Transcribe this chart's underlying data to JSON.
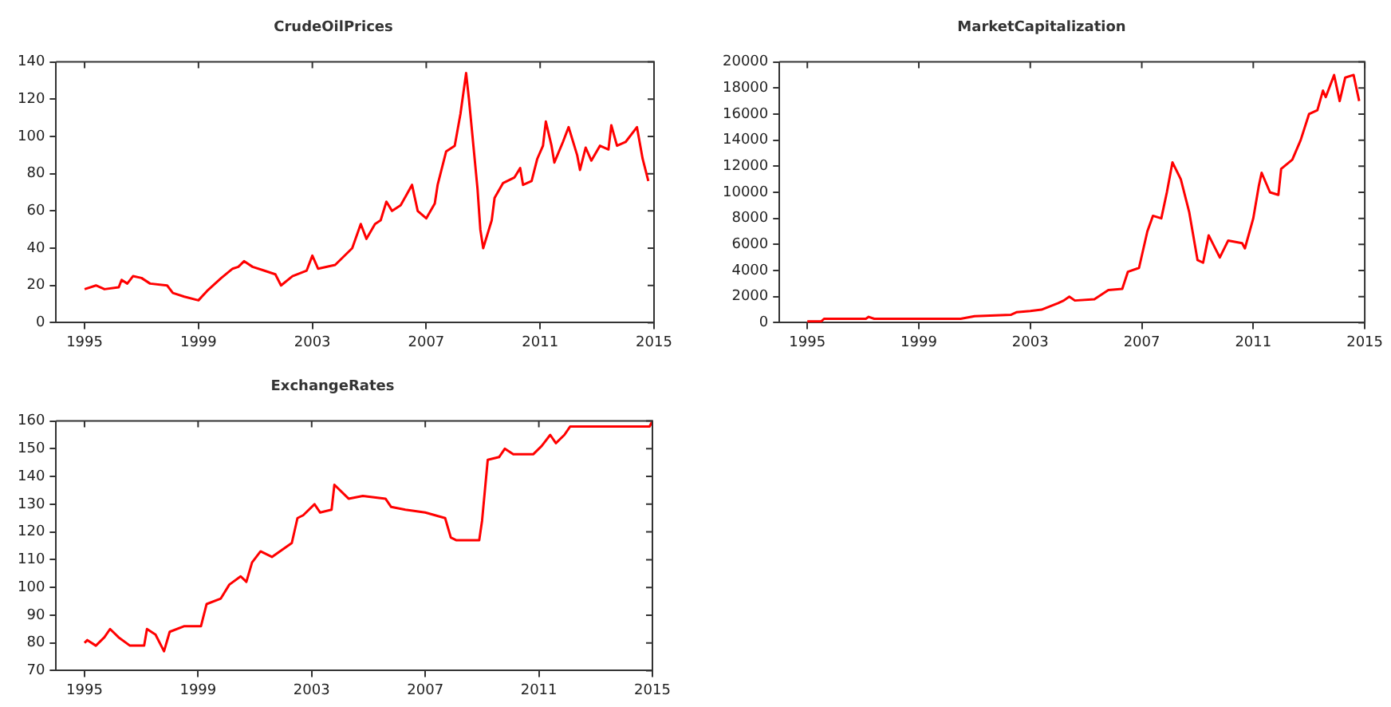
{
  "chart_data": [
    {
      "type": "line",
      "title": "CrudeOilPrices",
      "xlim": [
        1994,
        2015
      ],
      "xticks": [
        1995,
        1999,
        2003,
        2007,
        2011,
        2015
      ],
      "ylim": [
        0,
        140
      ],
      "yticks": [
        0,
        20,
        40,
        60,
        80,
        100,
        120,
        140
      ],
      "x": [
        1995,
        1995.4,
        1995.7,
        1996.2,
        1996.3,
        1996.5,
        1996.7,
        1997.0,
        1997.3,
        1997.9,
        1998.1,
        1998.5,
        1999.0,
        1999.3,
        1999.8,
        2000.2,
        2000.4,
        2000.6,
        2000.9,
        2001.3,
        2001.7,
        2001.9,
        2002.3,
        2002.8,
        2003.0,
        2003.2,
        2003.8,
        2004.4,
        2004.7,
        2004.9,
        2005.2,
        2005.4,
        2005.6,
        2005.8,
        2006.1,
        2006.5,
        2006.7,
        2007.0,
        2007.3,
        2007.4,
        2007.7,
        2008.0,
        2008.2,
        2008.4,
        2008.5,
        2008.8,
        2008.9,
        2009.0,
        2009.3,
        2009.4,
        2009.7,
        2010.1,
        2010.3,
        2010.4,
        2010.7,
        2010.9,
        2011.1,
        2011.2,
        2011.4,
        2011.5,
        2011.8,
        2012.0,
        2012.3,
        2012.4,
        2012.6,
        2012.8,
        2013.1,
        2013.4,
        2013.5,
        2013.7,
        2014.0,
        2014.4,
        2014.6,
        2014.8
      ],
      "series": [
        {
          "color": "#ff0000",
          "values": [
            18,
            20,
            18,
            19,
            23,
            21,
            25,
            24,
            21,
            20,
            16,
            14,
            12,
            17,
            24,
            29,
            30,
            33,
            30,
            28,
            26,
            20,
            25,
            28,
            36,
            29,
            31,
            40,
            53,
            45,
            53,
            55,
            65,
            60,
            63,
            74,
            60,
            56,
            64,
            74,
            92,
            95,
            112,
            134,
            120,
            72,
            50,
            40,
            55,
            67,
            75,
            78,
            83,
            74,
            76,
            88,
            95,
            108,
            95,
            86,
            97,
            105,
            90,
            82,
            94,
            87,
            95,
            93,
            106,
            95,
            97,
            105,
            88,
            76
          ]
        }
      ]
    },
    {
      "type": "line",
      "title": "MarketCapitalization",
      "xlim": [
        1994,
        2015
      ],
      "xticks": [
        1995,
        1999,
        2003,
        2007,
        2011,
        2015
      ],
      "ylim": [
        0,
        20000
      ],
      "yticks": [
        0,
        2000,
        4000,
        6000,
        8000,
        10000,
        12000,
        14000,
        16000,
        18000,
        20000
      ],
      "x": [
        1995,
        1995.5,
        1995.6,
        1997.1,
        1997.2,
        1997.4,
        2000.5,
        2001.0,
        2002.3,
        2002.5,
        2003.0,
        2003.4,
        2004.0,
        2004.2,
        2004.4,
        2004.6,
        2005.3,
        2005.8,
        2006.3,
        2006.5,
        2006.9,
        2007.2,
        2007.4,
        2007.7,
        2007.9,
        2008.1,
        2008.4,
        2008.7,
        2009.0,
        2009.2,
        2009.4,
        2009.8,
        2010.1,
        2010.6,
        2010.7,
        2011.0,
        2011.2,
        2011.3,
        2011.6,
        2011.9,
        2012.0,
        2012.4,
        2012.7,
        2013.0,
        2013.3,
        2013.5,
        2013.6,
        2013.9,
        2014.1,
        2014.3,
        2014.6,
        2014.8
      ],
      "series": [
        {
          "color": "#ff0000",
          "values": [
            100,
            100,
            300,
            300,
            450,
            300,
            300,
            500,
            600,
            800,
            900,
            1000,
            1500,
            1700,
            2000,
            1700,
            1800,
            2500,
            2600,
            3900,
            4200,
            7000,
            8200,
            8000,
            10000,
            12300,
            11000,
            8500,
            4800,
            4600,
            6700,
            5000,
            6300,
            6100,
            5700,
            8000,
            10500,
            11500,
            10000,
            9800,
            11800,
            12500,
            14000,
            16000,
            16300,
            17800,
            17300,
            19000,
            17000,
            18800,
            19000,
            17000
          ]
        }
      ]
    },
    {
      "type": "line",
      "title": "ExchangeRates",
      "xlim": [
        1994,
        2015
      ],
      "xticks": [
        1995,
        1999,
        2003,
        2007,
        2011,
        2015
      ],
      "ylim": [
        70,
        160
      ],
      "yticks": [
        70,
        80,
        90,
        100,
        110,
        120,
        130,
        140,
        150,
        160
      ],
      "x": [
        1995,
        1995.1,
        1995.4,
        1995.7,
        1995.9,
        1996.2,
        1996.6,
        1997.1,
        1997.2,
        1997.5,
        1997.8,
        1998.0,
        1998.5,
        1999.1,
        1999.3,
        1999.8,
        2000.1,
        2000.5,
        2000.7,
        2000.9,
        2001.2,
        2001.6,
        2002.3,
        2002.5,
        2002.7,
        2003.1,
        2003.3,
        2003.7,
        2003.8,
        2004.3,
        2004.8,
        2005.6,
        2005.8,
        2006.3,
        2007.0,
        2007.7,
        2007.9,
        2008.1,
        2008.9,
        2009.0,
        2009.2,
        2009.6,
        2009.8,
        2010.1,
        2010.8,
        2011.1,
        2011.4,
        2011.6,
        2011.9,
        2012.1,
        2014.9,
        2015.0
      ],
      "series": [
        {
          "color": "#ff0000",
          "values": [
            80,
            81,
            79,
            82,
            85,
            82,
            79,
            79,
            85,
            83,
            77,
            84,
            86,
            86,
            94,
            96,
            101,
            104,
            102,
            109,
            113,
            111,
            116,
            125,
            126,
            130,
            127,
            128,
            137,
            132,
            133,
            132,
            129,
            128,
            127,
            125,
            118,
            117,
            117,
            124,
            146,
            147,
            150,
            148,
            148,
            151,
            155,
            152,
            155,
            158,
            158,
            160
          ]
        }
      ]
    }
  ]
}
